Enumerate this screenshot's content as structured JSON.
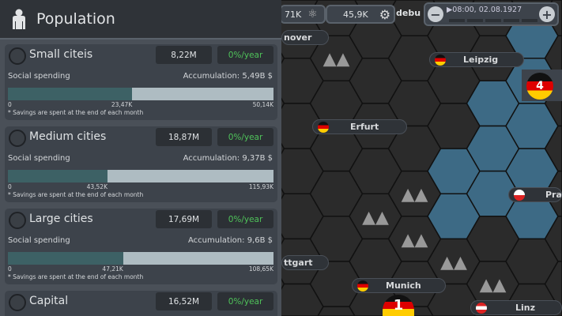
{
  "panel": {
    "title": "Population",
    "icon": "person-icon",
    "cards": [
      {
        "name": "Small citeis",
        "population": "8,22M",
        "growth": "0%/year",
        "spending_label": "Social spending",
        "accumulation": "Accumulation: 5,49B $",
        "min": "0",
        "current": "23,47K",
        "max": "50,14K",
        "fill": 0.468,
        "note": "* Savings are spent at the end of each month"
      },
      {
        "name": "Medium cities",
        "population": "18,87M",
        "growth": "0%/year",
        "spending_label": "Social spending",
        "accumulation": "Accumulation: 9,37B $",
        "min": "0",
        "current": "43,52K",
        "max": "115,93K",
        "fill": 0.375,
        "note": "* Savings are spent at the end of each month"
      },
      {
        "name": "Large cities",
        "population": "17,69M",
        "growth": "0%/year",
        "spending_label": "Social spending",
        "accumulation": "Accumulation: 9,6B $",
        "min": "0",
        "current": "47,21K",
        "max": "108,65K",
        "fill": 0.434,
        "note": "* Savings are spent at the end of each month"
      },
      {
        "name": "Capital",
        "population": "16,52M",
        "growth": "0%/year"
      }
    ]
  },
  "topbar": {
    "science": "71K",
    "industry": "45,9K",
    "debug": "debu",
    "time": "▶08:00, 02.08.1927",
    "minus": "−",
    "plus": "+"
  },
  "map": {
    "cities": [
      "nover",
      "Leipzig",
      "Erfurt",
      "Pra",
      "ttgart",
      "Munich",
      "Linz"
    ],
    "badges": [
      "4",
      "1"
    ]
  },
  "colors": {
    "growth": "#4fc35a",
    "bar_fill": "#3d6165",
    "bar_track": "#aebcc2",
    "water": "#3d6a85"
  }
}
